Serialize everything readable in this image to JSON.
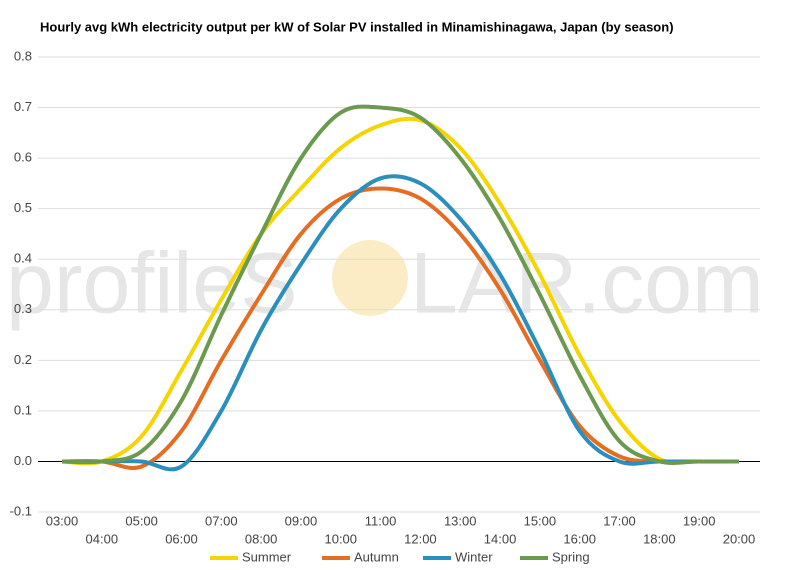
{
  "chart_data": {
    "type": "line",
    "title": "Hourly avg kWh electricity output per kW of Solar PV installed in Minamishinagawa, Japan (by season)",
    "watermark": [
      "profileS",
      "LAR.com"
    ],
    "categories": [
      "03:00",
      "04:00",
      "05:00",
      "06:00",
      "07:00",
      "08:00",
      "09:00",
      "10:00",
      "11:00",
      "12:00",
      "13:00",
      "14:00",
      "15:00",
      "16:00",
      "17:00",
      "18:00",
      "19:00",
      "20:00"
    ],
    "series": [
      {
        "name": "Summer",
        "color": "#f5d400",
        "values": [
          0,
          0,
          0.05,
          0.18,
          0.32,
          0.45,
          0.54,
          0.62,
          0.665,
          0.675,
          0.62,
          0.51,
          0.37,
          0.21,
          0.08,
          0.005,
          0,
          0
        ]
      },
      {
        "name": "Autumn",
        "color": "#e56d22",
        "values": [
          0,
          0,
          -0.01,
          0.06,
          0.2,
          0.33,
          0.45,
          0.52,
          0.54,
          0.52,
          0.45,
          0.34,
          0.2,
          0.07,
          0.01,
          0,
          0,
          0
        ]
      },
      {
        "name": "Winter",
        "color": "#2a8fbd",
        "values": [
          0,
          0,
          0,
          -0.01,
          0.1,
          0.26,
          0.39,
          0.5,
          0.56,
          0.55,
          0.48,
          0.37,
          0.22,
          0.06,
          0,
          0,
          0,
          0
        ]
      },
      {
        "name": "Spring",
        "color": "#6b9a4f",
        "values": [
          0,
          0,
          0.02,
          0.12,
          0.29,
          0.45,
          0.6,
          0.69,
          0.7,
          0.68,
          0.6,
          0.48,
          0.33,
          0.17,
          0.04,
          0,
          0,
          0
        ]
      }
    ],
    "ylim": [
      -0.1,
      0.8
    ],
    "yticks": [
      -0.1,
      {
        "value": 0,
        "label": "0.0"
      },
      0.1,
      0.2,
      0.3,
      0.4,
      0.5,
      0.6,
      0.7,
      0.8
    ],
    "grid": true
  }
}
